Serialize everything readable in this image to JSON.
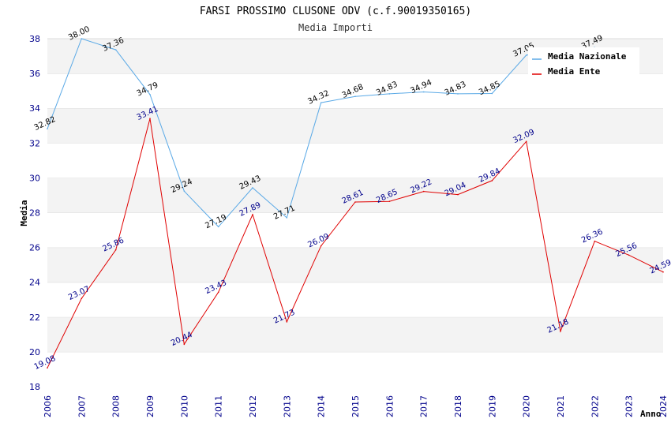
{
  "chart_data": {
    "type": "line",
    "title": "FARSI PROSSIMO CLUSONE ODV (c.f.90019350165)",
    "subtitle": "Media Importi",
    "xlabel": "Anno",
    "ylabel": "Media",
    "ylim": [
      18,
      38
    ],
    "yticks": [
      "18",
      "20",
      "22",
      "24",
      "26",
      "28",
      "30",
      "32",
      "34",
      "36",
      "38"
    ],
    "x": [
      "2006",
      "2007",
      "2008",
      "2009",
      "2010",
      "2011",
      "2012",
      "2013",
      "2014",
      "2015",
      "2016",
      "2017",
      "2018",
      "2019",
      "2020",
      "2021",
      "2022",
      "2023",
      "2024"
    ],
    "grid": "horizontal alternating bands",
    "legend_position": "top-right",
    "series": [
      {
        "name": "Media Nazionale",
        "color": "#5aa9e6",
        "values": [
          32.82,
          38.0,
          37.36,
          34.79,
          29.24,
          27.19,
          29.43,
          27.71,
          34.32,
          34.68,
          34.83,
          34.94,
          34.83,
          34.85,
          37.05,
          null,
          37.49,
          null,
          null
        ],
        "labels": [
          "32.82",
          "38.00",
          "37.36",
          "34.79",
          "29.24",
          "27.19",
          "29.43",
          "27.71",
          "34.32",
          "34.68",
          "34.83",
          "34.94",
          "34.83",
          "34.85",
          "37.05",
          "",
          "37.49",
          "",
          ""
        ]
      },
      {
        "name": "Media Ente",
        "color": "#e00000",
        "values": [
          19.08,
          23.07,
          25.86,
          33.41,
          20.44,
          23.43,
          27.89,
          21.73,
          26.09,
          28.61,
          28.65,
          29.22,
          29.04,
          29.84,
          32.09,
          21.18,
          26.36,
          25.56,
          24.59
        ],
        "labels": [
          "19.08",
          "23.07",
          "25.86",
          "33.41",
          "20.44",
          "23.43",
          "27.89",
          "21.73",
          "26.09",
          "28.61",
          "28.65",
          "29.22",
          "29.04",
          "29.84",
          "32.09",
          "21.18",
          "26.36",
          "25.56",
          "24.59"
        ]
      }
    ]
  }
}
